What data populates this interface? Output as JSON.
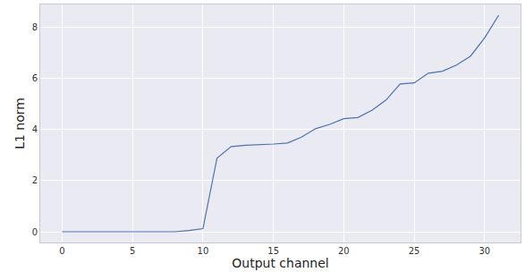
{
  "chart_data": {
    "type": "line",
    "x_label": "Output channel",
    "y_label": "L1 norm",
    "x": [
      0,
      1,
      2,
      3,
      4,
      5,
      6,
      7,
      8,
      9,
      10,
      11,
      12,
      13,
      14,
      15,
      16,
      17,
      18,
      19,
      20,
      21,
      22,
      23,
      24,
      25,
      26,
      27,
      28,
      29,
      30,
      31
    ],
    "values": [
      0,
      0,
      0,
      0,
      0,
      0,
      0,
      0,
      0,
      0.05,
      0.12,
      2.88,
      3.33,
      3.38,
      3.4,
      3.43,
      3.47,
      3.7,
      4.03,
      4.2,
      4.42,
      4.47,
      4.75,
      5.15,
      5.78,
      5.82,
      6.2,
      6.28,
      6.52,
      6.87,
      7.58,
      8.47
    ],
    "color": "#4c72b0",
    "xlim": [
      -1.55,
      32.55
    ],
    "xticks": [
      0,
      5,
      10,
      15,
      20,
      25,
      30
    ],
    "ylim": [
      -0.42,
      8.89
    ],
    "yticks": [
      0,
      2,
      4,
      6,
      8
    ],
    "grid": true
  }
}
